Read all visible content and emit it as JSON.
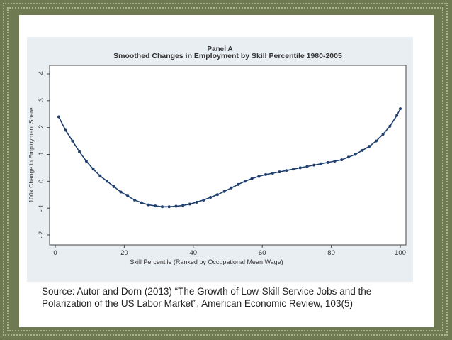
{
  "slide": {
    "source_text": "Source:  Autor and Dorn (2013) “The Growth of Low-Skill Service Jobs and the Polarization of the US Labor Market”, American Economic Review, 103(5)"
  },
  "colors": {
    "slide_bg": "#6f7a52",
    "frame_dots": "#aab58a",
    "figure_bg": "#e9eef3",
    "plot_bg": "#ffffff",
    "series": "#1f3f6f"
  },
  "chart_data": {
    "type": "line",
    "panel_label": "Panel A",
    "title": "Smoothed Changes in Employment by Skill Percentile 1980-2005",
    "xlabel": "Skill Percentile (Ranked by Occupational Mean Wage)",
    "ylabel": "100x Change in Employment Share",
    "xlim": [
      0,
      100
    ],
    "ylim": [
      -0.2,
      0.4
    ],
    "xticks": [
      0,
      20,
      40,
      60,
      80,
      100
    ],
    "yticks": [
      -0.2,
      -0.1,
      0,
      0.1,
      0.2,
      0.3,
      0.4
    ],
    "ytick_labels": [
      "-.2",
      "-.1",
      "0",
      ".1",
      ".2",
      ".3",
      ".4"
    ],
    "grid": false,
    "series": [
      {
        "markers": true,
        "x": [
          1,
          3,
          5,
          7,
          9,
          11,
          13,
          15,
          17,
          19,
          21,
          23,
          25,
          27,
          29,
          31,
          33,
          35,
          37,
          39,
          41,
          43,
          45,
          47,
          49,
          51,
          53,
          55,
          57,
          59,
          61,
          63,
          65,
          67,
          69,
          71,
          73,
          75,
          77,
          79,
          81,
          83,
          85,
          87,
          89,
          91,
          93,
          95,
          97,
          99,
          100
        ],
        "y": [
          0.24,
          0.19,
          0.15,
          0.11,
          0.075,
          0.045,
          0.02,
          0.0,
          -0.02,
          -0.04,
          -0.055,
          -0.07,
          -0.08,
          -0.088,
          -0.092,
          -0.095,
          -0.095,
          -0.093,
          -0.09,
          -0.085,
          -0.078,
          -0.07,
          -0.06,
          -0.05,
          -0.038,
          -0.025,
          -0.012,
          0.0,
          0.01,
          0.018,
          0.025,
          0.03,
          0.035,
          0.04,
          0.045,
          0.05,
          0.055,
          0.06,
          0.065,
          0.07,
          0.075,
          0.08,
          0.09,
          0.1,
          0.115,
          0.13,
          0.15,
          0.175,
          0.205,
          0.245,
          0.27
        ]
      }
    ]
  }
}
